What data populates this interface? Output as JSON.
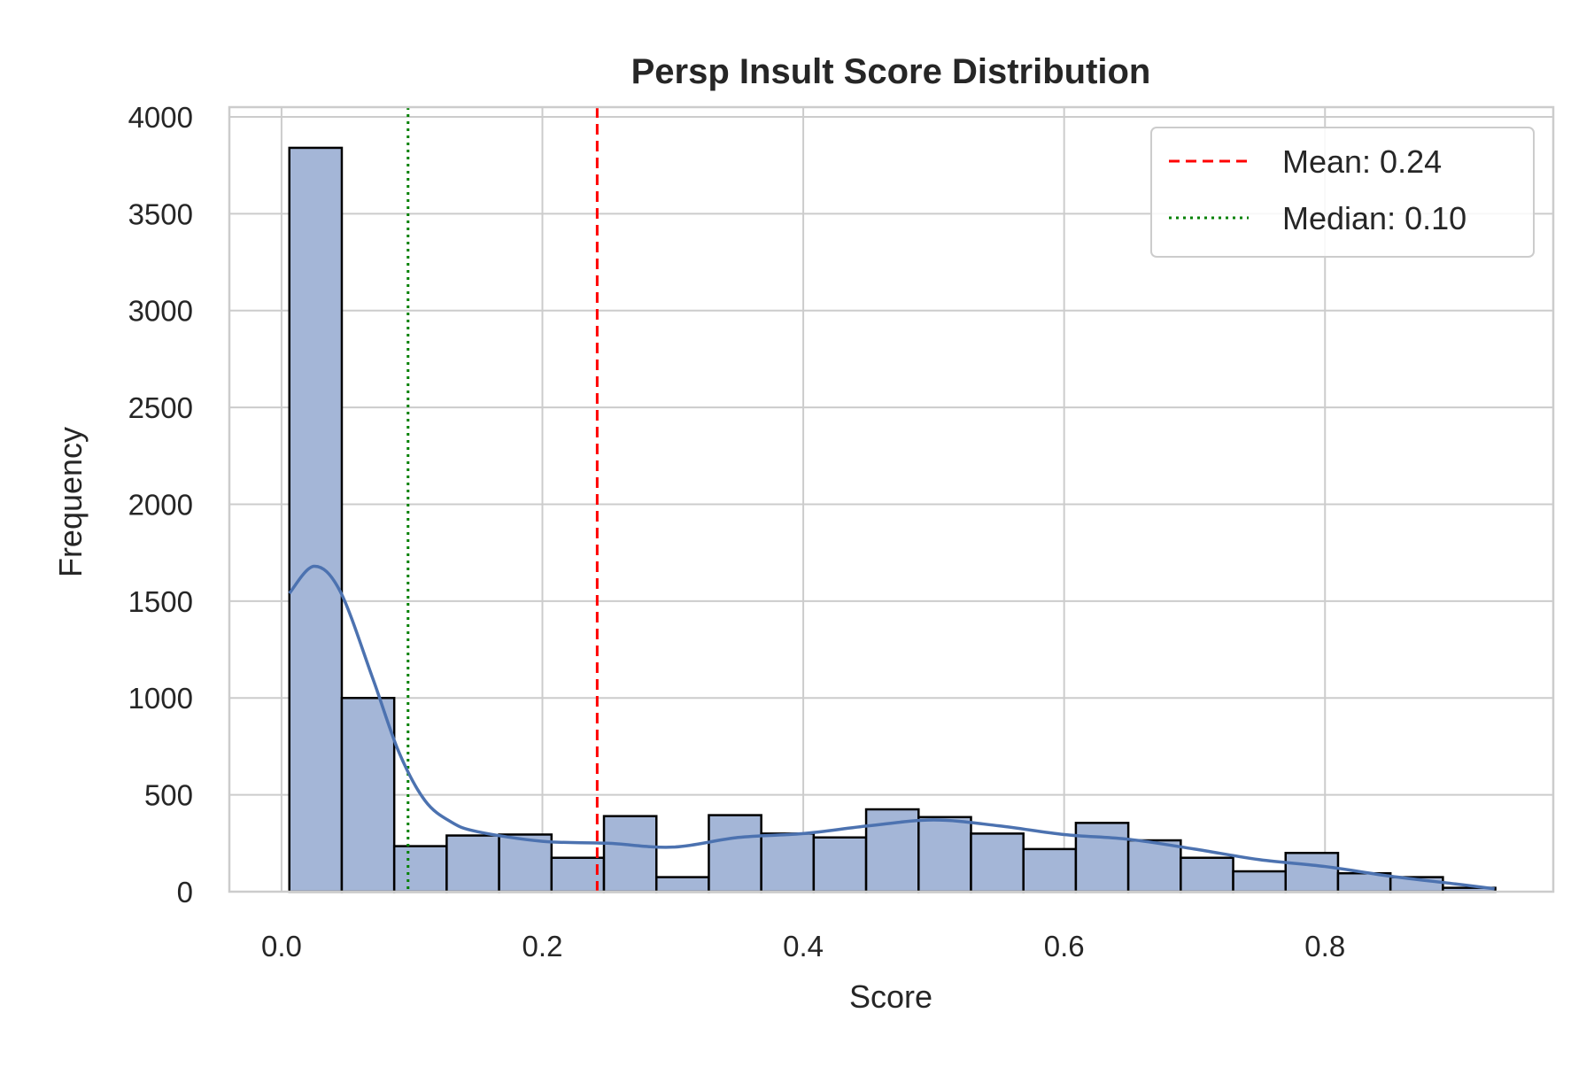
{
  "chart_data": {
    "type": "bar",
    "title": "Persp Insult Score Distribution",
    "xlabel": "Score",
    "ylabel": "Frequency",
    "xlim": [
      -0.04,
      0.975
    ],
    "ylim": [
      0,
      4050
    ],
    "xticks": [
      0.0,
      0.2,
      0.4,
      0.6,
      0.8
    ],
    "xtick_labels": [
      "0.0",
      "0.2",
      "0.4",
      "0.6",
      "0.8"
    ],
    "yticks": [
      0,
      500,
      1000,
      1500,
      2000,
      2500,
      3000,
      3500,
      4000
    ],
    "ytick_labels": [
      "0",
      "500",
      "1000",
      "1500",
      "2000",
      "2500",
      "3000",
      "3500",
      "4000"
    ],
    "grid": true,
    "legend_position": "top-right",
    "bin_edges": [
      0.006,
      0.0462,
      0.0864,
      0.1266,
      0.1668,
      0.207,
      0.2472,
      0.2874,
      0.3276,
      0.3678,
      0.408,
      0.4482,
      0.4884,
      0.5286,
      0.5688,
      0.609,
      0.6492,
      0.6894,
      0.7296,
      0.7698,
      0.81,
      0.8502,
      0.8904,
      0.9306
    ],
    "counts": [
      3840,
      1000,
      235,
      290,
      295,
      175,
      390,
      75,
      395,
      300,
      280,
      425,
      385,
      300,
      220,
      355,
      265,
      175,
      105,
      200,
      95,
      75,
      20
    ],
    "kde": {
      "x": [
        0.006,
        0.025,
        0.045,
        0.07,
        0.09,
        0.11,
        0.13,
        0.15,
        0.2,
        0.25,
        0.3,
        0.35,
        0.4,
        0.45,
        0.5,
        0.55,
        0.6,
        0.65,
        0.7,
        0.75,
        0.8,
        0.85,
        0.9,
        0.93
      ],
      "y": [
        1540,
        1680,
        1550,
        1100,
        720,
        470,
        360,
        310,
        260,
        250,
        230,
        280,
        300,
        340,
        370,
        340,
        295,
        270,
        220,
        165,
        130,
        80,
        40,
        15
      ]
    },
    "reference_lines": [
      {
        "name": "Mean: 0.24",
        "value": 0.242,
        "color": "#ff0000",
        "style": "dashed"
      },
      {
        "name": "Median: 0.10",
        "value": 0.097,
        "color": "#008000",
        "style": "dotted"
      }
    ],
    "colors": {
      "bar_fill": "#a4b6d7",
      "bar_edge": "#000000",
      "kde_line": "#4c72b0",
      "grid": "#cccccc",
      "spine": "#cccccc"
    }
  }
}
